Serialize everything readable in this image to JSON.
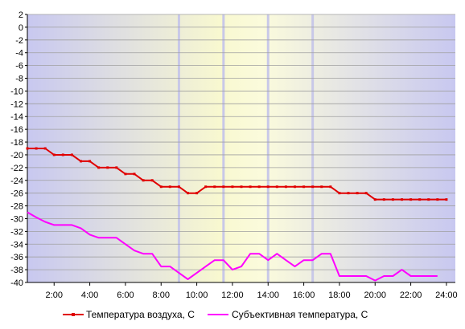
{
  "chart_data": {
    "type": "line",
    "title": "",
    "xlabel": "",
    "ylabel": "",
    "ylim": [
      -40,
      2
    ],
    "xlim": [
      0.5,
      24.5
    ],
    "grid": true,
    "legend_position": "bottom",
    "y_ticks": [
      "2",
      "0",
      "-2",
      "-4",
      "-6",
      "-8",
      "-10",
      "-12",
      "-14",
      "-16",
      "-18",
      "-20",
      "-22",
      "-24",
      "-26",
      "-28",
      "-30",
      "-32",
      "-34",
      "-36",
      "-38",
      "-40"
    ],
    "x_ticks": [
      "2:00",
      "4:00",
      "6:00",
      "8:00",
      "10:00",
      "12:00",
      "14:00",
      "16:00",
      "18:00",
      "20:00",
      "22:00",
      "24:00"
    ],
    "background_gradient": [
      "#c8c8f0",
      "#f8f8d0",
      "#fbfbdc",
      "#c8c8f0"
    ],
    "day_markers": [
      9.0,
      11.5,
      14.0,
      16.5
    ],
    "series": [
      {
        "name": "Температура воздуха, С",
        "color": "#e00000",
        "marker": "square",
        "points": [
          [
            0.5,
            -19
          ],
          [
            1,
            -19
          ],
          [
            1.5,
            -19
          ],
          [
            2,
            -20
          ],
          [
            2.5,
            -20
          ],
          [
            3,
            -20
          ],
          [
            3.5,
            -21
          ],
          [
            4,
            -21
          ],
          [
            4.5,
            -22
          ],
          [
            5,
            -22
          ],
          [
            5.5,
            -22
          ],
          [
            6,
            -23
          ],
          [
            6.5,
            -23
          ],
          [
            7,
            -24
          ],
          [
            7.5,
            -24
          ],
          [
            8,
            -25
          ],
          [
            8.5,
            -25
          ],
          [
            9,
            -25
          ],
          [
            9.5,
            -26
          ],
          [
            10,
            -26
          ],
          [
            10.5,
            -25
          ],
          [
            11,
            -25
          ],
          [
            11.5,
            -25
          ],
          [
            12,
            -25
          ],
          [
            12.5,
            -25
          ],
          [
            13,
            -25
          ],
          [
            13.5,
            -25
          ],
          [
            14,
            -25
          ],
          [
            14.5,
            -25
          ],
          [
            15,
            -25
          ],
          [
            15.5,
            -25
          ],
          [
            16,
            -25
          ],
          [
            16.5,
            -25
          ],
          [
            17,
            -25
          ],
          [
            17.5,
            -25
          ],
          [
            18,
            -26
          ],
          [
            18.5,
            -26
          ],
          [
            19,
            -26
          ],
          [
            19.5,
            -26
          ],
          [
            20,
            -27
          ],
          [
            20.5,
            -27
          ],
          [
            21,
            -27
          ],
          [
            21.5,
            -27
          ],
          [
            22,
            -27
          ],
          [
            22.5,
            -27
          ],
          [
            23,
            -27
          ],
          [
            23.5,
            -27
          ],
          [
            24,
            -27
          ]
        ]
      },
      {
        "name": "Субъективная температура, С",
        "color": "#ff00ff",
        "marker": "none",
        "points": [
          [
            0.5,
            -29
          ],
          [
            1,
            -29.8
          ],
          [
            1.5,
            -30.5
          ],
          [
            2,
            -31
          ],
          [
            3,
            -31
          ],
          [
            3.5,
            -31.5
          ],
          [
            4,
            -32.5
          ],
          [
            4.5,
            -33
          ],
          [
            5.5,
            -33
          ],
          [
            6,
            -34
          ],
          [
            6.5,
            -35
          ],
          [
            7,
            -35.5
          ],
          [
            7.5,
            -35.5
          ],
          [
            8,
            -37.5
          ],
          [
            8.5,
            -37.5
          ],
          [
            9,
            -38.5
          ],
          [
            9.5,
            -39.5
          ],
          [
            10,
            -38.5
          ],
          [
            10.5,
            -37.5
          ],
          [
            11,
            -36.5
          ],
          [
            11.5,
            -36.5
          ],
          [
            12,
            -38
          ],
          [
            12.5,
            -37.5
          ],
          [
            13,
            -35.5
          ],
          [
            13.5,
            -35.5
          ],
          [
            14,
            -36.5
          ],
          [
            14.5,
            -35.5
          ],
          [
            15,
            -36.5
          ],
          [
            15.5,
            -37.5
          ],
          [
            16,
            -36.5
          ],
          [
            16.5,
            -36.5
          ],
          [
            17,
            -35.5
          ],
          [
            17.5,
            -35.5
          ],
          [
            18,
            -39
          ],
          [
            19.5,
            -39
          ],
          [
            20,
            -39.7
          ],
          [
            20.5,
            -39
          ],
          [
            21,
            -39
          ],
          [
            21.5,
            -38
          ],
          [
            22,
            -39
          ],
          [
            22.5,
            -39
          ],
          [
            23,
            -39
          ],
          [
            23.5,
            -39
          ]
        ]
      }
    ]
  }
}
